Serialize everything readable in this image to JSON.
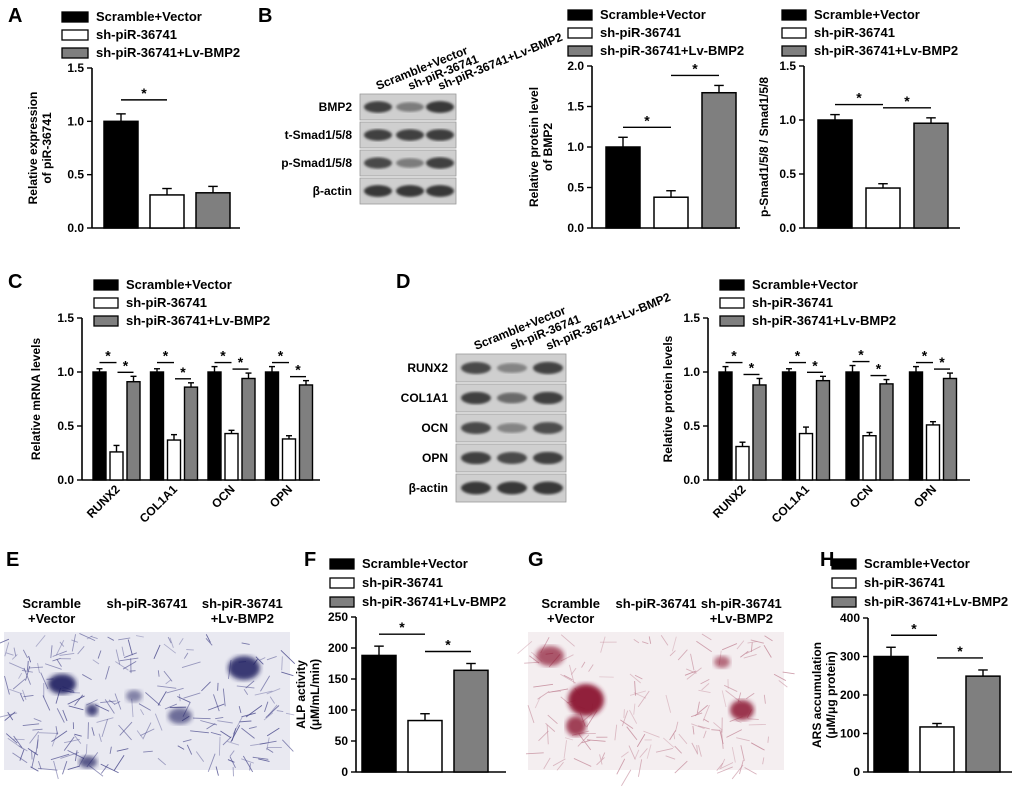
{
  "colors": {
    "black": "#000000",
    "white": "#ffffff",
    "gray": "#7f7f7f"
  },
  "series_names": [
    "Scramble+Vector",
    "sh-piR-36741",
    "sh-piR-36741+Lv-BMP2"
  ],
  "panel_labels": {
    "A": "A",
    "B": "B",
    "C": "C",
    "D": "D",
    "E": "E",
    "F": "F",
    "G": "G",
    "H": "H"
  },
  "blot_B": {
    "lanes": [
      "Scramble+Vector",
      "sh-piR-36741",
      "sh-piR-36741+Lv-BMP2"
    ],
    "rows": [
      "BMP2",
      "t-Smad1/5/8",
      "p-Smad1/5/8",
      "β-actin"
    ]
  },
  "blot_D": {
    "lanes": [
      "Scramble+Vector",
      "sh-piR-36741",
      "sh-piR-36741+Lv-BMP2"
    ],
    "rows": [
      "RUNX2",
      "COL1A1",
      "OCN",
      "OPN",
      "β-actin"
    ]
  },
  "micro_E": {
    "captions": [
      "Scramble\n+Vector",
      "sh-piR-36741",
      "sh-piR-36741\n+Lv-BMP2"
    ],
    "stain": "ALP"
  },
  "micro_G": {
    "captions": [
      "Scramble\n+Vector",
      "sh-piR-36741",
      "sh-piR-36741\n+Lv-BMP2"
    ],
    "stain": "ARS"
  },
  "chart_data": [
    {
      "id": "A",
      "type": "bar",
      "categories": [
        "Scramble+Vector",
        "sh-piR-36741",
        "sh-piR-36741+Lv-BMP2"
      ],
      "values": [
        1.0,
        0.31,
        0.33
      ],
      "errors": [
        0.07,
        0.06,
        0.06
      ],
      "ylabel": "Relative expression\nof piR-36741",
      "ylim": [
        0,
        1.5
      ],
      "yticks": [
        "0.0",
        "0.5",
        "1.0",
        "1.5"
      ],
      "significance": [
        {
          "from": 0,
          "to": 1,
          "label": "*"
        }
      ]
    },
    {
      "id": "B1",
      "type": "bar",
      "categories": [
        "Scramble+Vector",
        "sh-piR-36741",
        "sh-piR-36741+Lv-BMP2"
      ],
      "values": [
        1.0,
        0.38,
        1.67
      ],
      "errors": [
        0.12,
        0.08,
        0.09
      ],
      "ylabel": "Relative protein level\nof BMP2",
      "ylim": [
        0,
        2.0
      ],
      "yticks": [
        "0.0",
        "0.5",
        "1.0",
        "1.5",
        "2.0"
      ],
      "significance": [
        {
          "from": 0,
          "to": 1,
          "label": "*"
        },
        {
          "from": 1,
          "to": 2,
          "label": "*"
        }
      ]
    },
    {
      "id": "B2",
      "type": "bar",
      "categories": [
        "Scramble+Vector",
        "sh-piR-36741",
        "sh-piR-36741+Lv-BMP2"
      ],
      "values": [
        1.0,
        0.37,
        0.97
      ],
      "errors": [
        0.05,
        0.04,
        0.05
      ],
      "ylabel": "p-Smad1/5/8 / Smad1/5/8",
      "ylim": [
        0,
        1.5
      ],
      "yticks": [
        "0.0",
        "0.5",
        "1.0",
        "1.5"
      ],
      "significance": [
        {
          "from": 0,
          "to": 1,
          "label": "*"
        },
        {
          "from": 1,
          "to": 2,
          "label": "*"
        }
      ]
    },
    {
      "id": "C",
      "type": "bar",
      "categories": [
        "RUNX2",
        "COL1A1",
        "OCN",
        "OPN"
      ],
      "series": [
        {
          "name": "Scramble+Vector",
          "values": [
            1.0,
            1.0,
            1.0,
            1.0
          ],
          "errors": [
            0.03,
            0.03,
            0.05,
            0.05
          ]
        },
        {
          "name": "sh-piR-36741",
          "values": [
            0.26,
            0.37,
            0.43,
            0.38
          ],
          "errors": [
            0.06,
            0.05,
            0.03,
            0.03
          ]
        },
        {
          "name": "sh-piR-36741+Lv-BMP2",
          "values": [
            0.91,
            0.86,
            0.94,
            0.88
          ],
          "errors": [
            0.05,
            0.04,
            0.05,
            0.04
          ]
        }
      ],
      "ylabel": "Relative mRNA levels",
      "ylim": [
        0,
        1.5
      ],
      "yticks": [
        "0.0",
        "0.5",
        "1.0",
        "1.5"
      ],
      "significance_label": "*"
    },
    {
      "id": "D",
      "type": "bar",
      "categories": [
        "RUNX2",
        "COL1A1",
        "OCN",
        "OPN"
      ],
      "series": [
        {
          "name": "Scramble+Vector",
          "values": [
            1.0,
            1.0,
            1.0,
            1.0
          ],
          "errors": [
            0.05,
            0.03,
            0.06,
            0.05
          ]
        },
        {
          "name": "sh-piR-36741",
          "values": [
            0.31,
            0.43,
            0.41,
            0.51
          ],
          "errors": [
            0.04,
            0.06,
            0.03,
            0.03
          ]
        },
        {
          "name": "sh-piR-36741+Lv-BMP2",
          "values": [
            0.88,
            0.92,
            0.89,
            0.94
          ],
          "errors": [
            0.06,
            0.04,
            0.04,
            0.05
          ]
        }
      ],
      "ylabel": "Relative protein levels",
      "ylim": [
        0,
        1.5
      ],
      "yticks": [
        "0.0",
        "0.5",
        "1.0",
        "1.5"
      ],
      "significance_label": "*"
    },
    {
      "id": "F",
      "type": "bar",
      "categories": [
        "Scramble+Vector",
        "sh-piR-36741",
        "sh-piR-36741+Lv-BMP2"
      ],
      "values": [
        188,
        83,
        164
      ],
      "errors": [
        15,
        11,
        11
      ],
      "ylabel": "ALP activity\n(μM/mL/min)",
      "ylim": [
        0,
        250
      ],
      "yticks": [
        "0",
        "50",
        "100",
        "150",
        "200",
        "250"
      ],
      "significance": [
        {
          "from": 0,
          "to": 1,
          "label": "*"
        },
        {
          "from": 1,
          "to": 2,
          "label": "*"
        }
      ]
    },
    {
      "id": "H",
      "type": "bar",
      "categories": [
        "Scramble+Vector",
        "sh-piR-36741",
        "sh-piR-36741+Lv-BMP2"
      ],
      "values": [
        300,
        117,
        249
      ],
      "errors": [
        24,
        9,
        16
      ],
      "ylabel": "ARS accumulation\n(μM/μg protein)",
      "ylim": [
        0,
        400
      ],
      "yticks": [
        "0",
        "100",
        "200",
        "300",
        "400"
      ],
      "significance": [
        {
          "from": 0,
          "to": 1,
          "label": "*"
        },
        {
          "from": 1,
          "to": 2,
          "label": "*"
        }
      ]
    }
  ]
}
